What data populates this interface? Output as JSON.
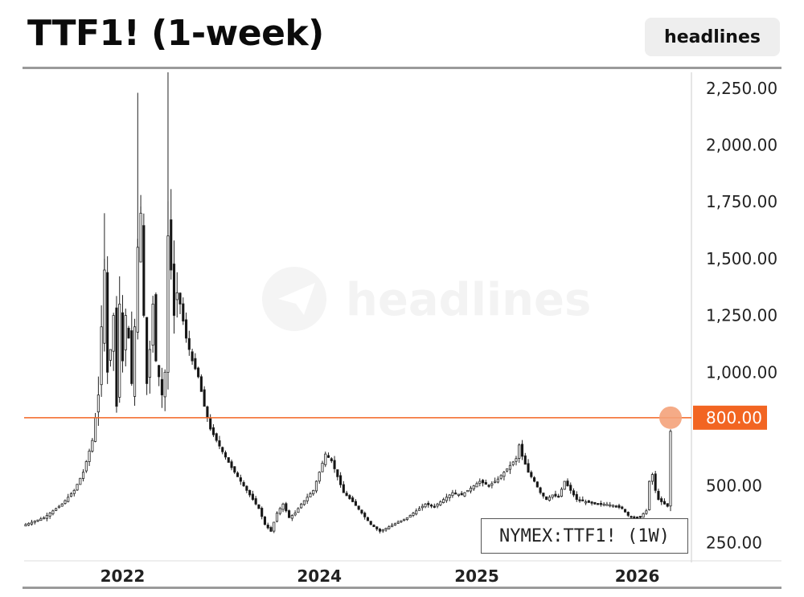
{
  "header": {
    "title": "TTF1! (1-week)",
    "badge_label": "headlines"
  },
  "watermark": {
    "text": "headlines"
  },
  "legend": {
    "text": "NYMEX:TTF1! (1W)"
  },
  "colors": {
    "candle_up": "#ffffff",
    "candle_down": "#111111",
    "wick": "#222222",
    "level_line": "#f26522",
    "level_tag": "#f26522",
    "marker": "#f4a27a",
    "grid": "#e6e6e6"
  },
  "chart_data": {
    "type": "candlestick",
    "symbol": "NYMEX:TTF1!",
    "interval": "1W",
    "y_ticks": [
      "2,250.00",
      "2,000.00",
      "1,750.00",
      "1,500.00",
      "1,250.00",
      "1,000.00",
      "500.00",
      "250.00"
    ],
    "y_tick_values": [
      2250,
      2000,
      1750,
      1500,
      1250,
      1000,
      500,
      250
    ],
    "x_ticks": [
      "2022",
      "2024",
      "2025",
      "2026"
    ],
    "ylim": [
      170,
      2320
    ],
    "horizontal_level": {
      "value": 800,
      "label": "800.00"
    },
    "last_price": 800,
    "anchors": [
      [
        0,
        330
      ],
      [
        6,
        360
      ],
      [
        12,
        420
      ],
      [
        16,
        480
      ],
      [
        19,
        560
      ],
      [
        22,
        700
      ],
      [
        24,
        900
      ],
      [
        25,
        1200
      ],
      [
        26,
        1450
      ],
      [
        27,
        1000
      ],
      [
        28,
        1100
      ],
      [
        29,
        1250
      ],
      [
        30,
        850
      ],
      [
        31,
        1300
      ],
      [
        32,
        1050
      ],
      [
        33,
        1250
      ],
      [
        34,
        1150
      ],
      [
        35,
        950
      ],
      [
        36,
        1200
      ],
      [
        37,
        1550
      ],
      [
        38,
        1700
      ],
      [
        39,
        1250
      ],
      [
        40,
        950
      ],
      [
        41,
        1100
      ],
      [
        42,
        1300
      ],
      [
        43,
        1050
      ],
      [
        44,
        980
      ],
      [
        45,
        900
      ],
      [
        46,
        1000
      ],
      [
        47,
        1600
      ],
      [
        48,
        1450
      ],
      [
        49,
        1250
      ],
      [
        50,
        1350
      ],
      [
        51,
        1300
      ],
      [
        53,
        1150
      ],
      [
        55,
        1050
      ],
      [
        57,
        980
      ],
      [
        59,
        850
      ],
      [
        61,
        750
      ],
      [
        63,
        700
      ],
      [
        65,
        650
      ],
      [
        68,
        580
      ],
      [
        71,
        520
      ],
      [
        74,
        460
      ],
      [
        77,
        400
      ],
      [
        79,
        330
      ],
      [
        81,
        300
      ],
      [
        83,
        380
      ],
      [
        85,
        420
      ],
      [
        87,
        360
      ],
      [
        89,
        380
      ],
      [
        91,
        420
      ],
      [
        93,
        450
      ],
      [
        95,
        480
      ],
      [
        97,
        560
      ],
      [
        99,
        640
      ],
      [
        101,
        610
      ],
      [
        103,
        540
      ],
      [
        105,
        470
      ],
      [
        108,
        430
      ],
      [
        111,
        380
      ],
      [
        114,
        330
      ],
      [
        117,
        300
      ],
      [
        120,
        320
      ],
      [
        123,
        340
      ],
      [
        126,
        360
      ],
      [
        129,
        390
      ],
      [
        132,
        420
      ],
      [
        135,
        410
      ],
      [
        138,
        440
      ],
      [
        141,
        470
      ],
      [
        144,
        460
      ],
      [
        147,
        490
      ],
      [
        150,
        520
      ],
      [
        153,
        500
      ],
      [
        156,
        530
      ],
      [
        158,
        560
      ],
      [
        160,
        590
      ],
      [
        162,
        620
      ],
      [
        163,
        680
      ],
      [
        164,
        630
      ],
      [
        166,
        560
      ],
      [
        168,
        520
      ],
      [
        170,
        470
      ],
      [
        172,
        440
      ],
      [
        174,
        460
      ],
      [
        176,
        450
      ],
      [
        178,
        520
      ],
      [
        180,
        480
      ],
      [
        182,
        440
      ],
      [
        185,
        430
      ],
      [
        188,
        420
      ],
      [
        191,
        420
      ],
      [
        194,
        415
      ],
      [
        197,
        400
      ],
      [
        199,
        370
      ],
      [
        201,
        360
      ],
      [
        203,
        365
      ],
      [
        205,
        390
      ],
      [
        206,
        520
      ],
      [
        207,
        550
      ],
      [
        208,
        480
      ],
      [
        209,
        440
      ],
      [
        210,
        430
      ],
      [
        211,
        420
      ],
      [
        212,
        410
      ],
      [
        213,
        740
      ]
    ]
  }
}
